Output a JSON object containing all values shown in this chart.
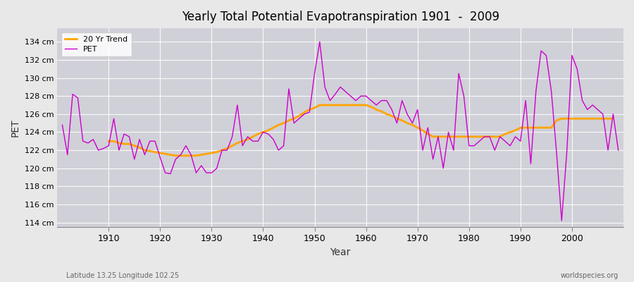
{
  "title": "Yearly Total Potential Evapotranspiration 1901  -  2009",
  "xlabel": "Year",
  "ylabel": "PET",
  "ylim": [
    113.5,
    135.5
  ],
  "xlim": [
    1900,
    2010
  ],
  "fig_bg_color": "#e8e8e8",
  "plot_bg_color": "#d0d0d8",
  "pet_color": "#cc00cc",
  "trend_color": "#ffa500",
  "pet_label": "PET",
  "trend_label": "20 Yr Trend",
  "subtitle_left": "Latitude 13.25 Longitude 102.25",
  "subtitle_right": "worldspecies.org",
  "yticks": [
    114,
    116,
    118,
    120,
    122,
    124,
    126,
    128,
    130,
    132,
    134
  ],
  "ytick_labels": [
    "114 cm",
    "116 cm",
    "118 cm",
    "120 cm",
    "122 cm",
    "124 cm",
    "126 cm",
    "128 cm",
    "130 cm",
    "132 cm",
    "134 cm"
  ],
  "xticks": [
    1910,
    1920,
    1930,
    1940,
    1950,
    1960,
    1970,
    1980,
    1990,
    2000
  ],
  "years": [
    1901,
    1902,
    1903,
    1904,
    1905,
    1906,
    1907,
    1908,
    1909,
    1910,
    1911,
    1912,
    1913,
    1914,
    1915,
    1916,
    1917,
    1918,
    1919,
    1920,
    1921,
    1922,
    1923,
    1924,
    1925,
    1926,
    1927,
    1928,
    1929,
    1930,
    1931,
    1932,
    1933,
    1934,
    1935,
    1936,
    1937,
    1938,
    1939,
    1940,
    1941,
    1942,
    1943,
    1944,
    1945,
    1946,
    1947,
    1948,
    1949,
    1950,
    1951,
    1952,
    1953,
    1954,
    1955,
    1956,
    1957,
    1958,
    1959,
    1960,
    1961,
    1962,
    1963,
    1964,
    1965,
    1966,
    1967,
    1968,
    1969,
    1970,
    1971,
    1972,
    1973,
    1974,
    1975,
    1976,
    1977,
    1978,
    1979,
    1980,
    1981,
    1982,
    1983,
    1984,
    1985,
    1986,
    1987,
    1988,
    1989,
    1990,
    1991,
    1992,
    1993,
    1994,
    1995,
    1996,
    1997,
    1998,
    1999,
    2000,
    2001,
    2002,
    2003,
    2004,
    2005,
    2006,
    2007,
    2008,
    2009
  ],
  "pet_values": [
    124.8,
    121.5,
    128.2,
    127.8,
    123.0,
    122.8,
    123.2,
    122.0,
    122.2,
    122.5,
    125.5,
    122.0,
    123.8,
    123.5,
    121.0,
    123.2,
    121.5,
    123.0,
    123.0,
    121.2,
    119.5,
    119.4,
    121.0,
    121.5,
    122.5,
    121.5,
    119.5,
    120.3,
    119.5,
    119.5,
    120.0,
    122.0,
    122.0,
    123.5,
    127.0,
    122.5,
    123.5,
    123.0,
    123.0,
    124.0,
    123.8,
    123.2,
    122.0,
    122.5,
    128.8,
    125.0,
    125.5,
    126.0,
    126.2,
    130.5,
    134.0,
    129.0,
    127.5,
    128.2,
    129.0,
    128.5,
    128.0,
    127.5,
    128.0,
    128.0,
    127.5,
    127.0,
    127.5,
    127.5,
    126.5,
    125.0,
    127.5,
    126.0,
    125.0,
    126.5,
    122.0,
    124.5,
    121.0,
    123.5,
    120.0,
    124.0,
    122.0,
    130.5,
    128.0,
    122.5,
    122.5,
    123.0,
    123.5,
    123.5,
    122.0,
    123.5,
    123.0,
    122.5,
    123.5,
    123.0,
    127.5,
    120.5,
    128.5,
    133.0,
    132.5,
    128.5,
    121.8,
    114.2,
    121.8,
    132.5,
    131.0,
    127.5,
    126.5,
    127.0,
    126.5,
    126.0,
    122.0,
    126.0,
    122.0
  ],
  "trend_values": [
    null,
    null,
    null,
    null,
    null,
    null,
    null,
    null,
    null,
    123.0,
    123.0,
    122.8,
    122.7,
    122.7,
    122.5,
    122.3,
    122.0,
    121.9,
    121.8,
    121.7,
    121.6,
    121.5,
    121.4,
    121.4,
    121.4,
    121.4,
    121.4,
    121.5,
    121.6,
    121.7,
    121.8,
    122.0,
    122.2,
    122.5,
    122.8,
    123.0,
    123.2,
    123.5,
    123.8,
    124.0,
    124.2,
    124.5,
    124.8,
    125.0,
    125.3,
    125.5,
    125.8,
    126.2,
    126.5,
    126.7,
    127.0,
    127.0,
    127.0,
    127.0,
    127.0,
    127.0,
    127.0,
    127.0,
    127.0,
    127.0,
    126.8,
    126.5,
    126.3,
    126.0,
    125.8,
    125.5,
    125.3,
    125.0,
    124.8,
    124.5,
    124.2,
    123.8,
    123.5,
    123.5,
    123.5,
    123.5,
    123.5,
    123.5,
    123.5,
    123.5,
    123.5,
    123.5,
    123.5,
    123.5,
    123.5,
    123.5,
    123.8,
    124.0,
    124.2,
    124.5,
    124.5,
    124.5,
    124.5,
    124.5,
    124.5,
    124.5,
    125.3,
    125.5,
    125.5,
    125.5,
    125.5,
    125.5,
    125.5,
    125.5,
    125.5,
    125.5,
    125.5,
    125.5
  ]
}
